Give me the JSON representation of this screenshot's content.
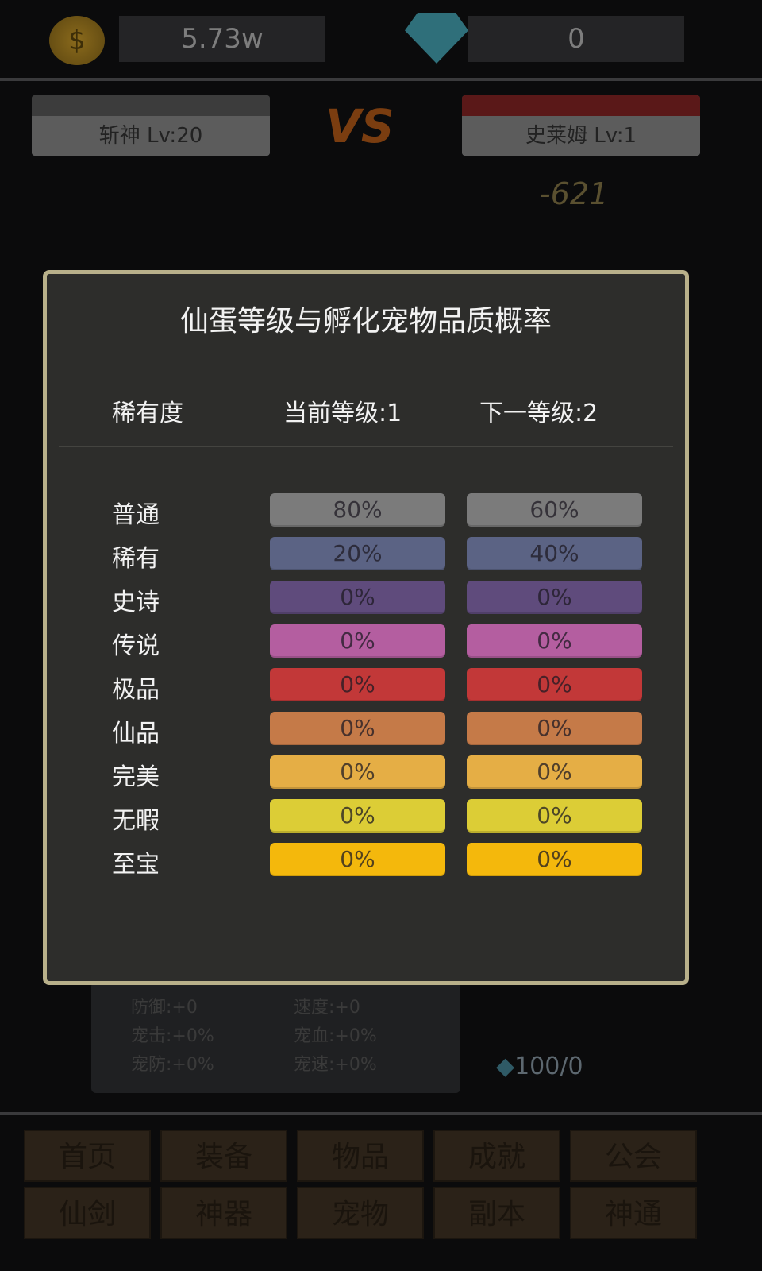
{
  "resources": {
    "gold": "5.73w",
    "diamonds": "0"
  },
  "battle": {
    "player": {
      "name": "斩神 Lv:20"
    },
    "enemy": {
      "name": "史莱姆 Lv:1"
    },
    "vs": "VS",
    "damage": "-621"
  },
  "pet_stats": [
    "防御:+0",
    "速度:+0",
    "宠击:+0%",
    "宠血:+0%",
    "宠防:+0%",
    "宠速:+0%"
  ],
  "egg_cost": "100/0",
  "nav": [
    "首页",
    "装备",
    "物品",
    "成就",
    "公会",
    "仙剑",
    "神器",
    "宠物",
    "副本",
    "神通"
  ],
  "modal": {
    "title": "仙蛋等级与孵化宠物品质概率",
    "col_rarity": "稀有度",
    "col_current": "当前等级:1",
    "col_next": "下一等级:2",
    "rows": [
      {
        "rarity": "普通",
        "current": "80%",
        "next": "60%",
        "color": "#7b7b7b"
      },
      {
        "rarity": "稀有",
        "current": "20%",
        "next": "40%",
        "color": "#5b6384"
      },
      {
        "rarity": "史诗",
        "current": "0%",
        "next": "0%",
        "color": "#5f4b7c"
      },
      {
        "rarity": "传说",
        "current": "0%",
        "next": "0%",
        "color": "#b45ea0"
      },
      {
        "rarity": "极品",
        "current": "0%",
        "next": "0%",
        "color": "#c23838"
      },
      {
        "rarity": "仙品",
        "current": "0%",
        "next": "0%",
        "color": "#c57a48"
      },
      {
        "rarity": "完美",
        "current": "0%",
        "next": "0%",
        "color": "#e5ae45"
      },
      {
        "rarity": "无暇",
        "current": "0%",
        "next": "0%",
        "color": "#dccd36"
      },
      {
        "rarity": "至宝",
        "current": "0%",
        "next": "0%",
        "color": "#f4b80c"
      }
    ]
  }
}
